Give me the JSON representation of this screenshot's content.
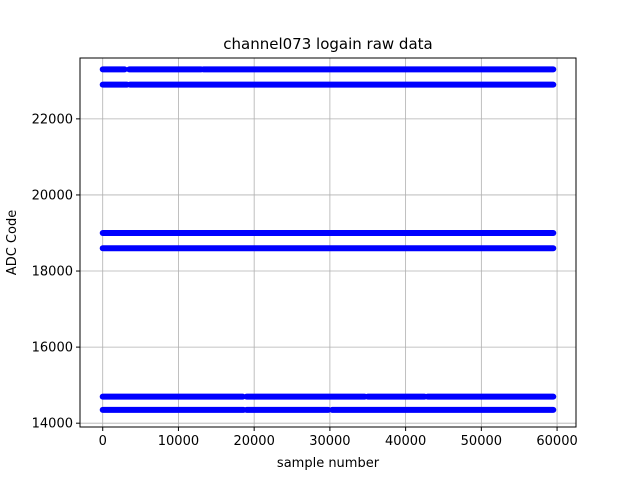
{
  "chart_data": {
    "type": "scatter",
    "title": "channel073 logain raw data",
    "xlabel": "sample number",
    "ylabel": "ADC Code",
    "xlim": [
      -3000,
      62500
    ],
    "ylim": [
      13900,
      23600
    ],
    "x_ticks": [
      0,
      10000,
      20000,
      30000,
      40000,
      50000,
      60000
    ],
    "x_tick_labels": [
      "0",
      "10000",
      "20000",
      "30000",
      "40000",
      "50000",
      "60000"
    ],
    "y_ticks": [
      14000,
      16000,
      18000,
      20000,
      22000
    ],
    "y_tick_labels": [
      "14000",
      "16000",
      "18000",
      "20000",
      "22000"
    ],
    "grid": true,
    "marker": "circle",
    "colors": {
      "series": "#0000ff",
      "grid": "#b0b0b0",
      "axes": "#000000"
    },
    "x_range": [
      0,
      59500
    ],
    "series": [
      {
        "level": 23300,
        "segments": [
          [
            0,
            2900
          ],
          [
            3500,
            13000
          ],
          [
            13300,
            59500
          ]
        ]
      },
      {
        "level": 22900,
        "segments": [
          [
            0,
            3200
          ],
          [
            3600,
            59500
          ]
        ]
      },
      {
        "level": 19000,
        "segments": [
          [
            0,
            59500
          ]
        ]
      },
      {
        "level": 18600,
        "segments": [
          [
            0,
            59500
          ]
        ]
      },
      {
        "level": 14700,
        "segments": [
          [
            0,
            18500
          ],
          [
            19000,
            34600
          ],
          [
            35000,
            42500
          ],
          [
            42900,
            59500
          ]
        ]
      },
      {
        "level": 14350,
        "segments": [
          [
            0,
            18600
          ],
          [
            19000,
            29800
          ],
          [
            30300,
            59500
          ]
        ]
      }
    ]
  }
}
